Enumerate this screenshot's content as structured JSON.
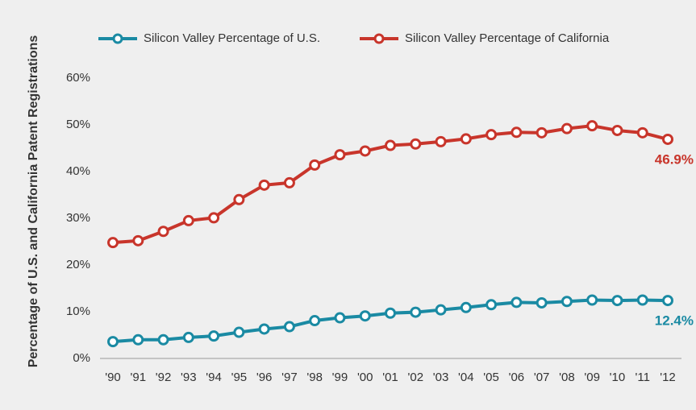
{
  "chart_data": {
    "type": "line",
    "y_label": "Percentage of U.S. and California Patent Registrations",
    "categories": [
      "'90",
      "'91",
      "'92",
      "'93",
      "'94",
      "'95",
      "'96",
      "'97",
      "'98",
      "'99",
      "'00",
      "'01",
      "'02",
      "'03",
      "'04",
      "'05",
      "'06",
      "'07",
      "'08",
      "'09",
      "'10",
      "'11",
      "'12"
    ],
    "series": [
      {
        "name": "Silicon Valley Percentage of U.S.",
        "color": "#1a8aa3",
        "values": [
          3.6,
          4.0,
          4.0,
          4.5,
          4.8,
          5.6,
          6.3,
          6.8,
          8.1,
          8.7,
          9.1,
          9.7,
          9.9,
          10.4,
          10.9,
          11.5,
          12.0,
          11.9,
          12.2,
          12.5,
          12.4,
          12.5,
          12.4
        ],
        "value_labels": [
          null,
          null,
          null,
          null,
          null,
          null,
          null,
          null,
          null,
          null,
          null,
          null,
          null,
          null,
          null,
          null,
          null,
          null,
          null,
          null,
          null,
          null,
          "12.4%"
        ]
      },
      {
        "name": "Silicon Valley Percentage of California",
        "color": "#c8352b",
        "values": [
          24.8,
          25.2,
          27.2,
          29.5,
          30.1,
          34.0,
          37.1,
          37.6,
          41.4,
          43.6,
          44.4,
          45.6,
          45.9,
          46.4,
          47.0,
          47.9,
          48.4,
          48.3,
          49.2,
          49.8,
          48.8,
          48.3,
          46.9
        ],
        "value_labels": [
          null,
          null,
          null,
          null,
          null,
          null,
          null,
          null,
          null,
          null,
          null,
          null,
          null,
          null,
          null,
          null,
          null,
          null,
          null,
          null,
          null,
          null,
          "46.9%"
        ]
      }
    ],
    "ylim": [
      0,
      60
    ],
    "yticks": [
      {
        "value": 0,
        "label": "0%"
      },
      {
        "value": 10,
        "label": "10%"
      },
      {
        "value": 20,
        "label": "20%"
      },
      {
        "value": 30,
        "label": "30%"
      },
      {
        "value": 40,
        "label": "40%"
      },
      {
        "value": 50,
        "label": "50%"
      },
      {
        "value": 60,
        "label": "60%"
      }
    ],
    "grid": false,
    "legend": "top"
  }
}
